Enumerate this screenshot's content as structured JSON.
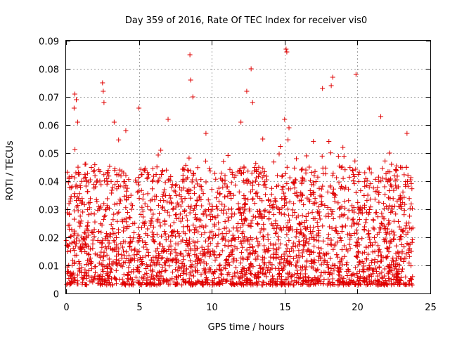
{
  "chart_data": {
    "type": "scatter",
    "title": "Day 359 of 2016, Rate Of TEC Index for receiver vis0",
    "xlabel": "GPS time / hours",
    "ylabel": "ROTI / TECUs",
    "xlim": [
      0,
      25
    ],
    "ylim": [
      0,
      0.09
    ],
    "x_ticks": [
      "0",
      "5",
      "10",
      "15",
      "20",
      "25"
    ],
    "y_ticks": [
      "0",
      "0.01",
      "0.02",
      "0.03",
      "0.04",
      "0.05",
      "0.06",
      "0.07",
      "0.08",
      "0.09"
    ],
    "x_tick_values": [
      0,
      5,
      10,
      15,
      20,
      25
    ],
    "y_tick_values": [
      0,
      0.01,
      0.02,
      0.03,
      0.04,
      0.05,
      0.06,
      0.07,
      0.08,
      0.09
    ],
    "grid": true,
    "marker": "+",
    "series": [
      {
        "name": "ROTI",
        "color": "#e00000",
        "points": [
          [
            0.2,
            0.032
          ],
          [
            0.4,
            0.018
          ],
          [
            0.55,
            0.066
          ],
          [
            0.6,
            0.071
          ],
          [
            0.7,
            0.069
          ],
          [
            0.8,
            0.061
          ],
          [
            1.0,
            0.025
          ],
          [
            1.3,
            0.046
          ],
          [
            1.6,
            0.012
          ],
          [
            2.0,
            0.038
          ],
          [
            2.5,
            0.075
          ],
          [
            2.55,
            0.072
          ],
          [
            2.6,
            0.068
          ],
          [
            3.0,
            0.021
          ],
          [
            3.3,
            0.061
          ],
          [
            3.6,
            0.014
          ],
          [
            4.1,
            0.058
          ],
          [
            4.5,
            0.03
          ],
          [
            5.0,
            0.066
          ],
          [
            5.4,
            0.044
          ],
          [
            6.0,
            0.019
          ],
          [
            6.5,
            0.051
          ],
          [
            7.0,
            0.062
          ],
          [
            7.5,
            0.028
          ],
          [
            8.0,
            0.04
          ],
          [
            8.5,
            0.085
          ],
          [
            8.55,
            0.076
          ],
          [
            8.7,
            0.07
          ],
          [
            9.0,
            0.033
          ],
          [
            9.6,
            0.057
          ],
          [
            10.2,
            0.024
          ],
          [
            10.8,
            0.047
          ],
          [
            11.4,
            0.015
          ],
          [
            12.0,
            0.061
          ],
          [
            12.4,
            0.072
          ],
          [
            12.7,
            0.08
          ],
          [
            12.8,
            0.068
          ],
          [
            13.1,
            0.036
          ],
          [
            13.5,
            0.055
          ],
          [
            14.0,
            0.011
          ],
          [
            14.5,
            0.042
          ],
          [
            15.0,
            0.062
          ],
          [
            15.1,
            0.087
          ],
          [
            15.15,
            0.086
          ],
          [
            15.3,
            0.059
          ],
          [
            15.8,
            0.027
          ],
          [
            16.5,
            0.049
          ],
          [
            17.0,
            0.02
          ],
          [
            17.6,
            0.073
          ],
          [
            18.2,
            0.074
          ],
          [
            18.3,
            0.077
          ],
          [
            18.5,
            0.035
          ],
          [
            19.0,
            0.052
          ],
          [
            19.5,
            0.016
          ],
          [
            19.9,
            0.078
          ],
          [
            20.5,
            0.043
          ],
          [
            21.1,
            0.026
          ],
          [
            21.6,
            0.063
          ],
          [
            22.2,
            0.05
          ],
          [
            22.8,
            0.038
          ],
          [
            23.4,
            0.057
          ],
          [
            23.7,
            0.015
          ]
        ],
        "band": {
          "x_start": 0.0,
          "x_end": 23.8,
          "y_min": 0.003,
          "y_max": 0.045
        }
      }
    ]
  }
}
